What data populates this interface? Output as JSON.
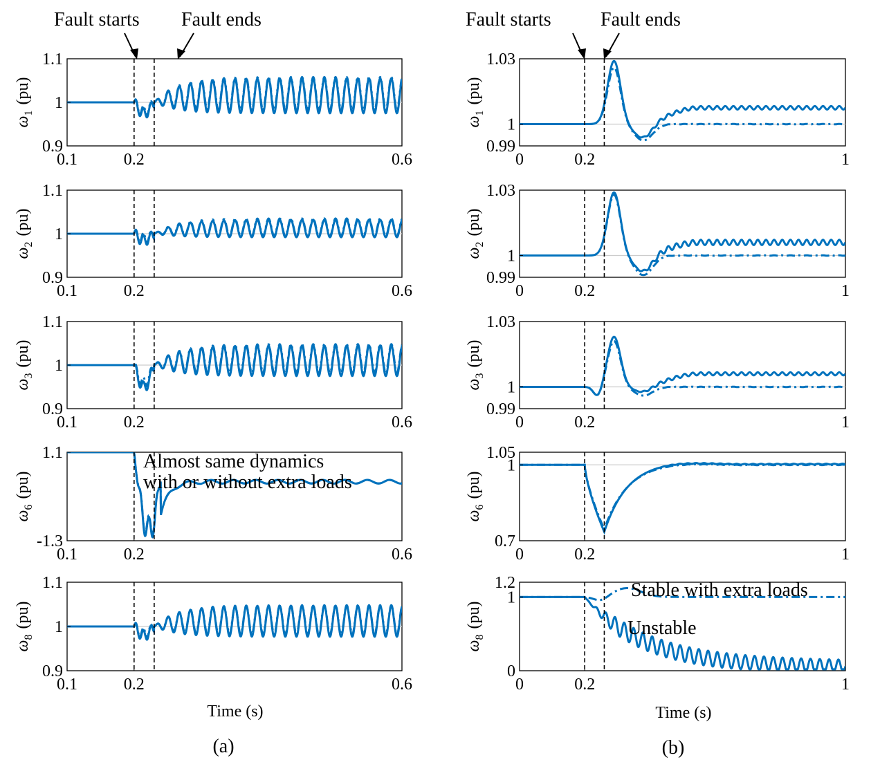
{
  "figure_labels": {
    "a": "(a)",
    "b": "(b)"
  },
  "x_axis_label": "Time (s)",
  "fault_labels": {
    "start": "Fault starts",
    "end": "Fault ends"
  },
  "chart_data": [
    {
      "panel": "a",
      "row": 1,
      "type": "line",
      "ylabel": {
        "sym": "ω",
        "sub": "1",
        "unit": "(pu)"
      },
      "xlim": [
        0.1,
        0.6
      ],
      "ylim": [
        0.9,
        1.1
      ],
      "xticks": [
        "0.1",
        "0.2",
        "0.6"
      ],
      "xtick_values": [
        0.1,
        0.2,
        0.6
      ],
      "yticks": [
        "0.9",
        "1",
        "1.1"
      ],
      "ytick_values": [
        0.9,
        1.0,
        1.1
      ],
      "fault_start": 0.2,
      "fault_end": 0.23,
      "reference": 1.0,
      "series": [
        {
          "style": "solid",
          "pre": 1.0,
          "dip": -0.025,
          "amp": 0.04,
          "freq": 60,
          "offset": 0.015,
          "settle": null
        },
        {
          "style": "dashdot",
          "pre": 1.0,
          "dip": -0.02,
          "amp": 0.038,
          "freq": 60,
          "offset": 0.02,
          "settle": null
        }
      ]
    },
    {
      "panel": "a",
      "row": 2,
      "type": "line",
      "ylabel": {
        "sym": "ω",
        "sub": "2",
        "unit": "(pu)"
      },
      "xlim": [
        0.1,
        0.6
      ],
      "ylim": [
        0.9,
        1.1
      ],
      "xticks": [
        "0.1",
        "0.2",
        "0.6"
      ],
      "xtick_values": [
        0.1,
        0.2,
        0.6
      ],
      "yticks": [
        "0.9",
        "1",
        "1.1"
      ],
      "ytick_values": [
        0.9,
        1.0,
        1.1
      ],
      "fault_start": 0.2,
      "fault_end": 0.23,
      "reference": 1.0,
      "series": [
        {
          "style": "solid",
          "pre": 1.0,
          "dip": -0.015,
          "amp": 0.02,
          "freq": 60,
          "offset": 0.012,
          "settle": null
        },
        {
          "style": "dashdot",
          "pre": 1.0,
          "dip": -0.01,
          "amp": 0.02,
          "freq": 60,
          "offset": 0.015,
          "settle": null
        }
      ]
    },
    {
      "panel": "a",
      "row": 3,
      "type": "line",
      "ylabel": {
        "sym": "ω",
        "sub": "3",
        "unit": "(pu)"
      },
      "xlim": [
        0.1,
        0.6
      ],
      "ylim": [
        0.9,
        1.1
      ],
      "xticks": [
        "0.1",
        "0.2",
        "0.6"
      ],
      "xtick_values": [
        0.1,
        0.2,
        0.6
      ],
      "yticks": [
        "0.9",
        "1",
        "1.1"
      ],
      "ytick_values": [
        0.9,
        1.0,
        1.1
      ],
      "fault_start": 0.2,
      "fault_end": 0.23,
      "reference": 1.0,
      "series": [
        {
          "style": "solid",
          "pre": 1.0,
          "dip": -0.05,
          "amp": 0.035,
          "freq": 60,
          "offset": 0.01,
          "settle": null
        },
        {
          "style": "dashdot",
          "pre": 1.0,
          "dip": -0.04,
          "amp": 0.033,
          "freq": 60,
          "offset": 0.015,
          "settle": null
        }
      ]
    },
    {
      "panel": "a",
      "row": 4,
      "type": "line",
      "ylabel": {
        "sym": "ω",
        "sub": "6",
        "unit": "(pu)"
      },
      "xlim": [
        0.1,
        0.6
      ],
      "ylim": [
        -1.3,
        1.1
      ],
      "xticks": [
        "0.1",
        "0.2",
        "0.6"
      ],
      "xtick_values": [
        0.1,
        0.2,
        0.6
      ],
      "yticks": [
        "-1.3",
        "1.1"
      ],
      "ytick_values": [
        -1.3,
        1.1
      ],
      "fault_start": 0.2,
      "fault_end": 0.23,
      "reference": null,
      "annotation": [
        "Almost same dynamics",
        "with or without extra loads"
      ],
      "series": [
        {
          "style": "solid",
          "pre": 1.1,
          "dip": -2.5,
          "amp": 0.05,
          "freq": 30,
          "offset": -0.45,
          "settle": null
        },
        {
          "style": "dashdot",
          "pre": 1.1,
          "dip": -2.45,
          "amp": 0.045,
          "freq": 30,
          "offset": -0.44,
          "settle": null
        }
      ]
    },
    {
      "panel": "a",
      "row": 5,
      "type": "line",
      "ylabel": {
        "sym": "ω",
        "sub": "8",
        "unit": "(pu)"
      },
      "xlim": [
        0.1,
        0.6
      ],
      "ylim": [
        0.9,
        1.1
      ],
      "xticks": [
        "0.1",
        "0.2",
        "0.6"
      ],
      "xtick_values": [
        0.1,
        0.2,
        0.6
      ],
      "yticks": [
        "0.9",
        "1",
        "1.1"
      ],
      "ytick_values": [
        0.9,
        1.0,
        1.1
      ],
      "fault_start": 0.2,
      "fault_end": 0.23,
      "reference": 1.0,
      "series": [
        {
          "style": "solid",
          "pre": 1.0,
          "dip": -0.02,
          "amp": 0.035,
          "freq": 60,
          "offset": 0.012,
          "settle": null
        },
        {
          "style": "dashdot",
          "pre": 1.0,
          "dip": -0.015,
          "amp": 0.033,
          "freq": 60,
          "offset": 0.015,
          "settle": null
        }
      ]
    },
    {
      "panel": "b",
      "row": 1,
      "type": "line",
      "ylabel": {
        "sym": "ω",
        "sub": "1",
        "unit": "(pu)"
      },
      "xlim": [
        0,
        1
      ],
      "ylim": [
        0.99,
        1.03
      ],
      "xticks": [
        "0",
        "0.2",
        "1"
      ],
      "xtick_values": [
        0,
        0.2,
        1
      ],
      "yticks": [
        "0.99",
        "1",
        "1.03"
      ],
      "ytick_values": [
        0.99,
        1.0,
        1.03
      ],
      "fault_start": 0.2,
      "fault_end": 0.26,
      "reference": 1.0,
      "series": [
        {
          "style": "solid",
          "pre": 1.0,
          "peak": 1.029,
          "trough": 0.9935,
          "settle": 1.0075,
          "amp": 0.0008,
          "freq": 40
        },
        {
          "style": "dashdot",
          "pre": 1.0,
          "peak": 1.026,
          "trough": 0.9925,
          "settle": 1.0,
          "amp": 0.0001,
          "freq": 40
        }
      ]
    },
    {
      "panel": "b",
      "row": 2,
      "type": "line",
      "ylabel": {
        "sym": "ω",
        "sub": "2",
        "unit": "(pu)"
      },
      "xlim": [
        0,
        1
      ],
      "ylim": [
        0.99,
        1.03
      ],
      "xticks": [
        "0",
        "0.2",
        "1"
      ],
      "xtick_values": [
        0,
        0.2,
        1
      ],
      "yticks": [
        "0.99",
        "1",
        "1.03"
      ],
      "ytick_values": [
        0.99,
        1.0,
        1.03
      ],
      "fault_start": 0.2,
      "fault_end": 0.26,
      "reference": 1.0,
      "series": [
        {
          "style": "solid",
          "pre": 1.0,
          "peak": 1.029,
          "trough": 0.9925,
          "settle": 1.006,
          "amp": 0.0012,
          "freq": 40
        },
        {
          "style": "dashdot",
          "pre": 1.0,
          "peak": 1.028,
          "trough": 0.991,
          "settle": 1.0,
          "amp": 0.0001,
          "freq": 40
        }
      ]
    },
    {
      "panel": "b",
      "row": 3,
      "type": "line",
      "ylabel": {
        "sym": "ω",
        "sub": "3",
        "unit": "(pu)"
      },
      "xlim": [
        0,
        1
      ],
      "ylim": [
        0.99,
        1.03
      ],
      "xticks": [
        "0",
        "0.2",
        "1"
      ],
      "xtick_values": [
        0,
        0.2,
        1
      ],
      "yticks": [
        "0.99",
        "1",
        "1.03"
      ],
      "ytick_values": [
        0.99,
        1.0,
        1.03
      ],
      "fault_start": 0.2,
      "fault_end": 0.26,
      "reference": 1.0,
      "series": [
        {
          "style": "solid",
          "pre": 1.0,
          "peak": 1.023,
          "trough": 0.9975,
          "settle": 1.006,
          "amp": 0.0007,
          "freq": 40,
          "predip": 0.9955
        },
        {
          "style": "dashdot",
          "pre": 1.0,
          "peak": 1.021,
          "trough": 0.996,
          "settle": 1.0,
          "amp": 0.0001,
          "freq": 40,
          "predip": 0.9955
        }
      ]
    },
    {
      "panel": "b",
      "row": 4,
      "type": "line",
      "ylabel": {
        "sym": "ω",
        "sub": "6",
        "unit": "(pu)"
      },
      "xlim": [
        0,
        1
      ],
      "ylim": [
        0.7,
        1.05
      ],
      "xticks": [
        "0",
        "0.2",
        "1"
      ],
      "xtick_values": [
        0,
        0.2,
        1
      ],
      "yticks": [
        "0.7",
        "1",
        "1.05"
      ],
      "ytick_values": [
        0.7,
        1.0,
        1.05
      ],
      "fault_start": 0.2,
      "fault_end": 0.26,
      "reference": 1.0,
      "series": [
        {
          "style": "solid",
          "pre": 1.0,
          "low": 0.735,
          "peak": 1.015,
          "settle": 1.003,
          "amp": 0.0015,
          "freq": 40
        },
        {
          "style": "dashdot",
          "pre": 1.0,
          "low": 0.745,
          "peak": 1.01,
          "settle": 1.0,
          "amp": 0.001,
          "freq": 40
        }
      ]
    },
    {
      "panel": "b",
      "row": 5,
      "type": "line",
      "ylabel": {
        "sym": "ω",
        "sub": "8",
        "unit": "(pu)"
      },
      "xlim": [
        0,
        1
      ],
      "ylim": [
        0,
        1.2
      ],
      "xticks": [
        "0",
        "0.2",
        "1"
      ],
      "xtick_values": [
        0,
        0.2,
        1
      ],
      "yticks": [
        "0",
        "1",
        "1.2"
      ],
      "ytick_values": [
        0,
        1.0,
        1.2
      ],
      "fault_start": 0.2,
      "fault_end": 0.26,
      "reference": null,
      "annotations": [
        "Stable with extra loads",
        "Unstable"
      ],
      "series": [
        {
          "style": "solid",
          "pre": 1.0,
          "final": 0.05,
          "amp": 0.12,
          "freq": 35
        },
        {
          "style": "dashdot",
          "pre": 1.0,
          "bump": 1.12,
          "settle": 1.0
        }
      ]
    }
  ]
}
